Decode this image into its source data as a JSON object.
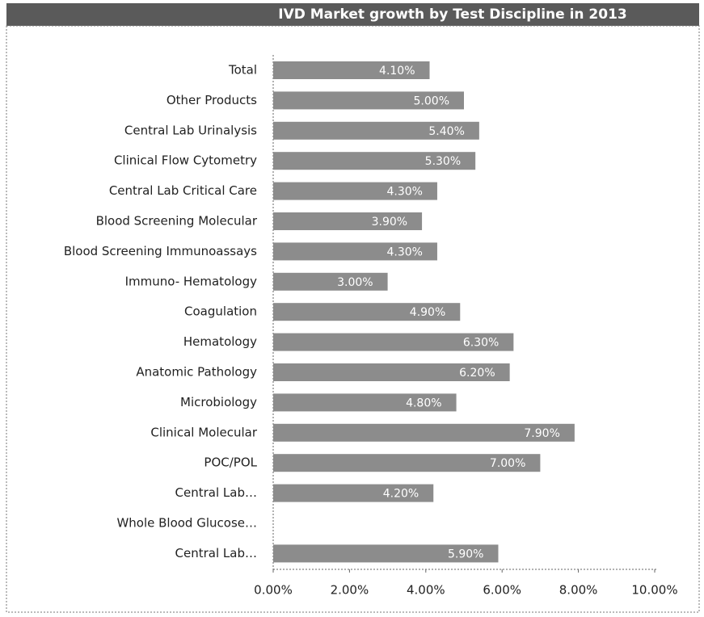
{
  "chart_data": {
    "type": "bar",
    "orientation": "horizontal",
    "title": "IVD Market growth by Test Discipline in 2013",
    "categories": [
      "Total",
      "Other Products",
      "Central Lab Urinalysis",
      "Clinical Flow Cytometry",
      "Central Lab Critical Care",
      "Blood Screening Molecular",
      "Blood Screening Immunoassays",
      "Immuno- Hematology",
      "Coagulation",
      "Hematology",
      "Anatomic Pathology",
      "Microbiology",
      "Clinical Molecular",
      "POC/POL",
      "Central Lab…",
      "Whole Blood Glucose…",
      "Central Lab…"
    ],
    "values": [
      4.1,
      5.0,
      5.4,
      5.3,
      4.3,
      3.9,
      4.3,
      3.0,
      4.9,
      6.3,
      6.2,
      4.8,
      7.9,
      7.0,
      4.2,
      null,
      5.9
    ],
    "value_labels": [
      "4.10%",
      "5.00%",
      "5.40%",
      "5.30%",
      "4.30%",
      "3.90%",
      "4.30%",
      "3.00%",
      "4.90%",
      "6.30%",
      "6.20%",
      "4.80%",
      "7.90%",
      "7.00%",
      "4.20%",
      null,
      "5.90%"
    ],
    "color": "#8c8c8c",
    "xlim": [
      0,
      10
    ],
    "xticks": [
      {
        "value": 0,
        "label": "0.00%"
      },
      {
        "value": 2,
        "label": "2.00%"
      },
      {
        "value": 4,
        "label": "4.00%"
      },
      {
        "value": 6,
        "label": "6.00%"
      },
      {
        "value": 8,
        "label": "8.00%"
      },
      {
        "value": 10,
        "label": "10.00%"
      }
    ]
  }
}
